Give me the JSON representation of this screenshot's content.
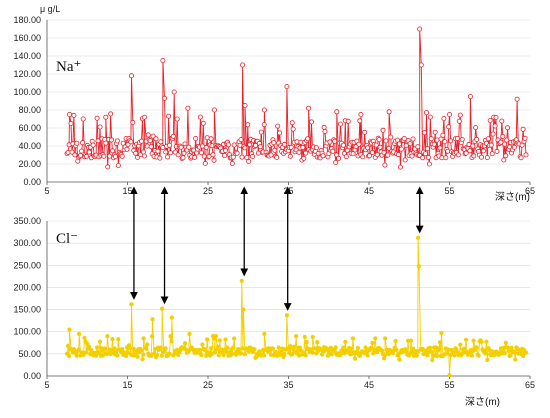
{
  "chart_data": [
    {
      "type": "line",
      "ylabel": "μ g/L",
      "xlabel": "深さ(m)",
      "series": [
        {
          "name": "Na⁺"
        }
      ],
      "color": "#e8202a",
      "marker": "hollow-circle",
      "xlim": [
        5,
        65
      ],
      "ylim": [
        0,
        180
      ],
      "xticks": [
        "5",
        "15",
        "25",
        "35",
        "45",
        "55",
        "65"
      ],
      "yticks": [
        "0.00",
        "20.00",
        "40.00",
        "60.00",
        "80.00",
        "100.00",
        "120.00",
        "140.00",
        "160.00",
        "180.00"
      ],
      "baseline_range": [
        15,
        60
      ],
      "start_depth": 7.5,
      "end_depth": 64.5,
      "peaks": [
        {
          "x": 7.8,
          "y": 75
        },
        {
          "x": 9.5,
          "y": 70
        },
        {
          "x": 12.3,
          "y": 72
        },
        {
          "x": 15.5,
          "y": 118
        },
        {
          "x": 17.1,
          "y": 72
        },
        {
          "x": 19.4,
          "y": 135
        },
        {
          "x": 19.6,
          "y": 93
        },
        {
          "x": 20.8,
          "y": 100
        },
        {
          "x": 22.5,
          "y": 82
        },
        {
          "x": 25.8,
          "y": 80
        },
        {
          "x": 29.3,
          "y": 130
        },
        {
          "x": 29.6,
          "y": 85
        },
        {
          "x": 32.0,
          "y": 80
        },
        {
          "x": 34.8,
          "y": 106
        },
        {
          "x": 37.5,
          "y": 82
        },
        {
          "x": 41.0,
          "y": 78
        },
        {
          "x": 44.0,
          "y": 75
        },
        {
          "x": 47.5,
          "y": 78
        },
        {
          "x": 51.3,
          "y": 170
        },
        {
          "x": 51.5,
          "y": 130
        },
        {
          "x": 55.0,
          "y": 75
        },
        {
          "x": 57.6,
          "y": 95
        },
        {
          "x": 60.5,
          "y": 72
        },
        {
          "x": 63.4,
          "y": 92
        }
      ]
    },
    {
      "type": "line",
      "xlabel": "深さ(m)",
      "series": [
        {
          "name": "Cl⁻"
        }
      ],
      "color": "#f4cf00",
      "marker": "filled-circle",
      "xlim": [
        5,
        65
      ],
      "ylim": [
        0,
        350
      ],
      "xticks": [
        "5",
        "15",
        "25",
        "35",
        "45",
        "55",
        "65"
      ],
      "yticks": [
        "0.00",
        "50.00",
        "100.00",
        "150.00",
        "200.00",
        "250.00",
        "300.00",
        "350.00"
      ],
      "baseline_range": [
        35,
        75
      ],
      "start_depth": 7.5,
      "end_depth": 64.5,
      "peaks": [
        {
          "x": 7.8,
          "y": 105
        },
        {
          "x": 9.0,
          "y": 95
        },
        {
          "x": 12.5,
          "y": 90
        },
        {
          "x": 15.5,
          "y": 162
        },
        {
          "x": 17.0,
          "y": 85
        },
        {
          "x": 18.1,
          "y": 128
        },
        {
          "x": 19.3,
          "y": 152
        },
        {
          "x": 20.5,
          "y": 132
        },
        {
          "x": 22.7,
          "y": 95
        },
        {
          "x": 26.0,
          "y": 90
        },
        {
          "x": 29.2,
          "y": 215
        },
        {
          "x": 29.4,
          "y": 150
        },
        {
          "x": 32.0,
          "y": 95
        },
        {
          "x": 34.8,
          "y": 137
        },
        {
          "x": 38.0,
          "y": 88
        },
        {
          "x": 43.0,
          "y": 85
        },
        {
          "x": 47.0,
          "y": 85
        },
        {
          "x": 51.1,
          "y": 312
        },
        {
          "x": 51.2,
          "y": 248
        },
        {
          "x": 54.0,
          "y": 97
        },
        {
          "x": 55.0,
          "y": 2
        },
        {
          "x": 58.0,
          "y": 80
        },
        {
          "x": 62.0,
          "y": 75
        }
      ]
    }
  ],
  "correlation_arrows": {
    "depths": [
      15.8,
      19.6,
      29.5,
      34.9,
      51.3
    ]
  }
}
